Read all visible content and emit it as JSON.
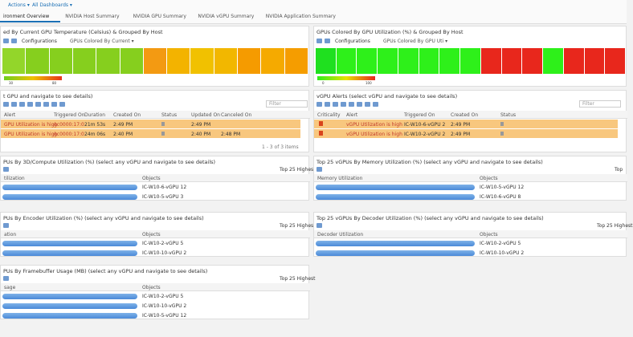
{
  "toolbar": {
    "actions": "Actions ▾",
    "dashboards": "All Dashboards ▾"
  },
  "tabs": [
    "ironment Overview",
    "NVIDIA Host Summary",
    "NVIDIA GPU Summary",
    "NVIDIA vGPU Summary",
    "NVIDIA Application Summary"
  ],
  "heatmaps": [
    {
      "title": "ed By Current GPU Temperature (Celsius) & Grouped By Host",
      "configurations": "Configurations",
      "color_by": "GPUs Colored By Current ▾",
      "cells": [
        "#93d62a",
        "#86cf1e",
        "#86cf1e",
        "#86cf1e",
        "#86cf1e",
        "#86cf1e",
        "#f39a12",
        "#f3b300",
        "#f1c100",
        "#f2b700",
        "#f59b00",
        "#f5aa00",
        "#f59d00"
      ],
      "legend_min": "30",
      "legend_max": "80",
      "legend_colors": [
        "#6fcf1e",
        "#f0c000",
        "#e8331c"
      ]
    },
    {
      "title": "GPUs Colored By GPU Utilization (%) & Grouped By Host",
      "configurations": "Configurations",
      "color_by": "GPUs Colored By GPU Uti ▾",
      "cells": [
        "#1fe01f",
        "#2ef01a",
        "#2ef01a",
        "#2ef01a",
        "#2ef01a",
        "#2ef01a",
        "#2ef01a",
        "#2ef01a",
        "#e8271c",
        "#e8271c",
        "#e8271c",
        "#2ef01a",
        "#e8271c",
        "#e8271c",
        "#e8271c"
      ],
      "legend_min": "0",
      "legend_max": "100",
      "legend_colors": [
        "#2ef01a",
        "#e8e000",
        "#e8271c"
      ]
    }
  ],
  "alerts": [
    {
      "title": "t GPU and navigate to see details)",
      "filter": "Filter",
      "columns": [
        "Alert",
        "Triggered On",
        "Duration",
        "Created On",
        "Status",
        "Updated On",
        "Canceled On"
      ],
      "rows": [
        [
          "GPU Utilization is high",
          "gc0000:17:0",
          "21m 53s",
          "2:49 PM",
          null,
          "2:49 PM",
          null
        ],
        [
          "GPU Utilization is high",
          "gc0000:17:0",
          "24m 06s",
          "2:40 PM",
          null,
          "2:40 PM",
          "2:48 PM"
        ]
      ],
      "footer": "1 - 3 of 3 items"
    },
    {
      "title": "vGPU Alerts (select vGPU and navigate to see details)",
      "filter": "Filter",
      "columns": [
        "Criticality",
        "Alert",
        "Triggered On",
        "Created On",
        "Status"
      ],
      "rows": [
        [
          null,
          "vGPU Utilization is high",
          "IC-W10-6-vGPU 2",
          "2:49 PM",
          null
        ],
        [
          null,
          "vGPU Utilization is high",
          "IC-W10-2-vGPU 2",
          "2:49 PM",
          null
        ]
      ]
    }
  ],
  "top_lists": [
    {
      "title": "PUs By 3D/Compute Utilization (%) (select any vGPU and navigate to see details)",
      "mode": "Top 25 Highest",
      "columns": [
        "tilization",
        "Objects"
      ],
      "rows": [
        "IC-W10-6-vGPU 12",
        "IC-W10-5-vGPU 3"
      ]
    },
    {
      "title": "Top 25 vGPUs By Memory Utilization (%) (select any vGPU and navigate to see details)",
      "mode": "Top",
      "columns": [
        "Memory Utilization",
        "Objects"
      ],
      "rows": [
        "IC-W10-5-vGPU 12",
        "IC-W10-6-vGPU 8"
      ]
    },
    {
      "title": "PUs By Encoder Utilization (%) (select any vGPU and navigate to see details)",
      "mode": "Top 25 Highest",
      "columns": [
        "ation",
        "Objects"
      ],
      "rows": [
        "IC-W10-2-vGPU 5",
        "IC-W10-10-vGPU 2"
      ]
    },
    {
      "title": "Top 25 vGPUs By Decoder Utilization (%) (select any vGPU and navigate to see details)",
      "mode": "Top 25 Highest",
      "columns": [
        "Decoder Utilization",
        "Objects"
      ],
      "rows": [
        "IC-W10-2-vGPU 5",
        "IC-W10-10-vGPU 2"
      ]
    },
    {
      "title": "PUs By Framebuffer Usage (MB) (select any vGPU and navigate to see details)",
      "mode": "Top 25 Highest",
      "columns": [
        "sage",
        "Objects"
      ],
      "rows": [
        "IC-W10-2-vGPU 5",
        "IC-W10-10-vGPU 2",
        "IC-W10-5-vGPU 12"
      ]
    }
  ]
}
